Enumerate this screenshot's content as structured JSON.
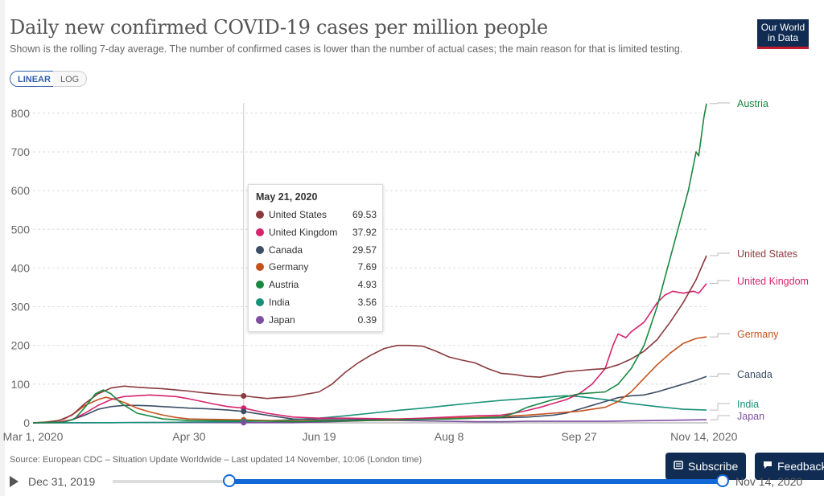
{
  "title": "Daily new confirmed COVID-19 cases per million people",
  "subtitle": "Shown is the rolling 7-day average. The number of confirmed cases is lower than the number of actual cases; the main reason for that is limited testing.",
  "logo": {
    "line1": "Our World",
    "line2": "in Data"
  },
  "scale_toggle": {
    "linear": "LINEAR",
    "log": "LOG",
    "active": "linear"
  },
  "tooltip": {
    "date": "May 21, 2020",
    "rows": [
      {
        "name": "United States",
        "value": "69.53",
        "color": "#8b3a3e"
      },
      {
        "name": "United Kingdom",
        "value": "37.92",
        "color": "#d6246e"
      },
      {
        "name": "Canada",
        "value": "29.57",
        "color": "#3c4e66"
      },
      {
        "name": "Germany",
        "value": "7.69",
        "color": "#c5521d"
      },
      {
        "name": "Austria",
        "value": "4.93",
        "color": "#1a8741"
      },
      {
        "name": "India",
        "value": "3.56",
        "color": "#18917b"
      },
      {
        "name": "Japan",
        "value": "0.39",
        "color": "#7e4fa0"
      }
    ]
  },
  "source": "Source: European CDC – Situation Update Worldwide – Last updated 14 November, 10:06 (London time)",
  "timeline": {
    "start": "Dec 31, 2019",
    "end": "Nov 14, 2020",
    "start_fraction": 0.19,
    "end_fraction": 1.0
  },
  "buttons": {
    "subscribe": "Subscribe",
    "feedback": "Feedback"
  },
  "chart_data": {
    "type": "line",
    "title": "Daily new confirmed COVID-19 cases per million people",
    "x_ticks": [
      {
        "label": "Mar 1, 2020",
        "day": 0
      },
      {
        "label": "Apr 30",
        "day": 60
      },
      {
        "label": "Jun 19",
        "day": 110
      },
      {
        "label": "Aug 8",
        "day": 160
      },
      {
        "label": "Sep 27",
        "day": 210
      },
      {
        "label": "Nov 14, 2020",
        "day": 258
      }
    ],
    "y_ticks": [
      0,
      100,
      200,
      300,
      400,
      500,
      600,
      700,
      800
    ],
    "ylim": [
      0,
      850
    ],
    "hover_day": 81,
    "grid": "horizontal dashed",
    "legend": "right (line-end labels)",
    "series": [
      {
        "name": "Austria",
        "color": "#1a8741",
        "label_value": 825,
        "points": [
          [
            0,
            0
          ],
          [
            12,
            2
          ],
          [
            16,
            10
          ],
          [
            20,
            40
          ],
          [
            24,
            75
          ],
          [
            27,
            85
          ],
          [
            30,
            75
          ],
          [
            34,
            50
          ],
          [
            40,
            25
          ],
          [
            50,
            10
          ],
          [
            60,
            6
          ],
          [
            81,
            4.93
          ],
          [
            100,
            3
          ],
          [
            120,
            5
          ],
          [
            140,
            8
          ],
          [
            160,
            10
          ],
          [
            170,
            12
          ],
          [
            180,
            15
          ],
          [
            185,
            25
          ],
          [
            190,
            40
          ],
          [
            200,
            60
          ],
          [
            210,
            75
          ],
          [
            220,
            80
          ],
          [
            225,
            100
          ],
          [
            230,
            140
          ],
          [
            235,
            200
          ],
          [
            240,
            300
          ],
          [
            244,
            400
          ],
          [
            248,
            500
          ],
          [
            252,
            600
          ],
          [
            255,
            700
          ],
          [
            256,
            690
          ],
          [
            258,
            790
          ],
          [
            259,
            825
          ]
        ]
      },
      {
        "name": "United States",
        "color": "#8b3a3e",
        "label_value": 432,
        "points": [
          [
            0,
            0
          ],
          [
            5,
            2
          ],
          [
            10,
            6
          ],
          [
            15,
            20
          ],
          [
            20,
            50
          ],
          [
            25,
            75
          ],
          [
            30,
            90
          ],
          [
            35,
            95
          ],
          [
            40,
            92
          ],
          [
            45,
            90
          ],
          [
            50,
            88
          ],
          [
            55,
            85
          ],
          [
            60,
            82
          ],
          [
            65,
            78
          ],
          [
            70,
            75
          ],
          [
            75,
            72
          ],
          [
            81,
            69.53
          ],
          [
            90,
            63
          ],
          [
            100,
            68
          ],
          [
            110,
            80
          ],
          [
            115,
            100
          ],
          [
            120,
            130
          ],
          [
            125,
            155
          ],
          [
            130,
            175
          ],
          [
            135,
            192
          ],
          [
            140,
            200
          ],
          [
            145,
            200
          ],
          [
            150,
            198
          ],
          [
            155,
            185
          ],
          [
            160,
            170
          ],
          [
            165,
            162
          ],
          [
            170,
            155
          ],
          [
            175,
            140
          ],
          [
            180,
            128
          ],
          [
            185,
            125
          ],
          [
            190,
            120
          ],
          [
            195,
            118
          ],
          [
            200,
            125
          ],
          [
            205,
            132
          ],
          [
            210,
            135
          ],
          [
            215,
            138
          ],
          [
            220,
            140
          ],
          [
            225,
            150
          ],
          [
            230,
            165
          ],
          [
            235,
            185
          ],
          [
            240,
            215
          ],
          [
            245,
            260
          ],
          [
            250,
            310
          ],
          [
            255,
            370
          ],
          [
            259,
            432
          ]
        ]
      },
      {
        "name": "United Kingdom",
        "color": "#d6246e",
        "label_value": 360,
        "points": [
          [
            0,
            0
          ],
          [
            10,
            2
          ],
          [
            15,
            8
          ],
          [
            20,
            25
          ],
          [
            25,
            45
          ],
          [
            30,
            60
          ],
          [
            35,
            68
          ],
          [
            40,
            70
          ],
          [
            45,
            72
          ],
          [
            50,
            70
          ],
          [
            55,
            68
          ],
          [
            60,
            62
          ],
          [
            65,
            55
          ],
          [
            70,
            48
          ],
          [
            75,
            42
          ],
          [
            81,
            37.92
          ],
          [
            90,
            25
          ],
          [
            100,
            15
          ],
          [
            110,
            12
          ],
          [
            120,
            12
          ],
          [
            130,
            11
          ],
          [
            140,
            10
          ],
          [
            150,
            12
          ],
          [
            160,
            15
          ],
          [
            170,
            18
          ],
          [
            180,
            20
          ],
          [
            185,
            25
          ],
          [
            190,
            32
          ],
          [
            195,
            40
          ],
          [
            200,
            50
          ],
          [
            205,
            60
          ],
          [
            210,
            75
          ],
          [
            215,
            100
          ],
          [
            220,
            140
          ],
          [
            223,
            200
          ],
          [
            225,
            230
          ],
          [
            228,
            220
          ],
          [
            230,
            235
          ],
          [
            235,
            260
          ],
          [
            240,
            310
          ],
          [
            243,
            330
          ],
          [
            246,
            340
          ],
          [
            250,
            335
          ],
          [
            254,
            340
          ],
          [
            256,
            335
          ],
          [
            259,
            360
          ]
        ]
      },
      {
        "name": "Germany",
        "color": "#c5521d",
        "label_value": 222,
        "points": [
          [
            0,
            0
          ],
          [
            8,
            3
          ],
          [
            12,
            10
          ],
          [
            16,
            25
          ],
          [
            20,
            45
          ],
          [
            25,
            60
          ],
          [
            28,
            66
          ],
          [
            32,
            60
          ],
          [
            36,
            50
          ],
          [
            40,
            38
          ],
          [
            45,
            28
          ],
          [
            50,
            20
          ],
          [
            55,
            14
          ],
          [
            60,
            10
          ],
          [
            70,
            9
          ],
          [
            81,
            7.69
          ],
          [
            90,
            6
          ],
          [
            100,
            5
          ],
          [
            110,
            5
          ],
          [
            120,
            5
          ],
          [
            130,
            6
          ],
          [
            140,
            7
          ],
          [
            150,
            10
          ],
          [
            160,
            12
          ],
          [
            170,
            14
          ],
          [
            180,
            16
          ],
          [
            190,
            20
          ],
          [
            200,
            25
          ],
          [
            210,
            30
          ],
          [
            215,
            35
          ],
          [
            220,
            40
          ],
          [
            225,
            55
          ],
          [
            230,
            80
          ],
          [
            235,
            115
          ],
          [
            240,
            150
          ],
          [
            245,
            180
          ],
          [
            250,
            205
          ],
          [
            255,
            218
          ],
          [
            259,
            222
          ]
        ]
      },
      {
        "name": "Canada",
        "color": "#3c4e66",
        "label_value": 120,
        "points": [
          [
            0,
            0
          ],
          [
            10,
            2
          ],
          [
            15,
            8
          ],
          [
            20,
            20
          ],
          [
            25,
            35
          ],
          [
            30,
            42
          ],
          [
            35,
            45
          ],
          [
            40,
            45
          ],
          [
            45,
            44
          ],
          [
            50,
            42
          ],
          [
            55,
            40
          ],
          [
            60,
            38
          ],
          [
            65,
            37
          ],
          [
            70,
            35
          ],
          [
            75,
            33
          ],
          [
            81,
            29.57
          ],
          [
            90,
            20
          ],
          [
            100,
            10
          ],
          [
            110,
            8
          ],
          [
            120,
            8
          ],
          [
            130,
            9
          ],
          [
            140,
            9
          ],
          [
            150,
            10
          ],
          [
            160,
            11
          ],
          [
            170,
            12
          ],
          [
            180,
            13
          ],
          [
            190,
            15
          ],
          [
            200,
            20
          ],
          [
            205,
            25
          ],
          [
            210,
            35
          ],
          [
            215,
            45
          ],
          [
            220,
            55
          ],
          [
            225,
            65
          ],
          [
            230,
            70
          ],
          [
            235,
            72
          ],
          [
            240,
            80
          ],
          [
            245,
            90
          ],
          [
            250,
            100
          ],
          [
            255,
            110
          ],
          [
            259,
            120
          ]
        ]
      },
      {
        "name": "India",
        "color": "#18917b",
        "label_value": 33,
        "points": [
          [
            0,
            0
          ],
          [
            30,
            0.5
          ],
          [
            50,
            1
          ],
          [
            60,
            2
          ],
          [
            70,
            2.5
          ],
          [
            81,
            3.56
          ],
          [
            90,
            5
          ],
          [
            100,
            8
          ],
          [
            110,
            12
          ],
          [
            120,
            18
          ],
          [
            130,
            25
          ],
          [
            140,
            32
          ],
          [
            150,
            38
          ],
          [
            160,
            45
          ],
          [
            170,
            52
          ],
          [
            180,
            58
          ],
          [
            190,
            63
          ],
          [
            200,
            68
          ],
          [
            205,
            70
          ],
          [
            210,
            68
          ],
          [
            220,
            60
          ],
          [
            230,
            50
          ],
          [
            240,
            42
          ],
          [
            250,
            35
          ],
          [
            259,
            33
          ]
        ]
      },
      {
        "name": "Japan",
        "color": "#7e4fa0",
        "label_value": 8,
        "points": [
          [
            0,
            0
          ],
          [
            30,
            0.5
          ],
          [
            40,
            1
          ],
          [
            50,
            1
          ],
          [
            60,
            0.8
          ],
          [
            81,
            0.39
          ],
          [
            100,
            0.5
          ],
          [
            110,
            2
          ],
          [
            120,
            4
          ],
          [
            130,
            6
          ],
          [
            140,
            6
          ],
          [
            150,
            5
          ],
          [
            160,
            4
          ],
          [
            170,
            3
          ],
          [
            180,
            3
          ],
          [
            190,
            4
          ],
          [
            200,
            4
          ],
          [
            210,
            4
          ],
          [
            220,
            4
          ],
          [
            230,
            5
          ],
          [
            240,
            6
          ],
          [
            250,
            7
          ],
          [
            259,
            8
          ]
        ]
      }
    ]
  }
}
